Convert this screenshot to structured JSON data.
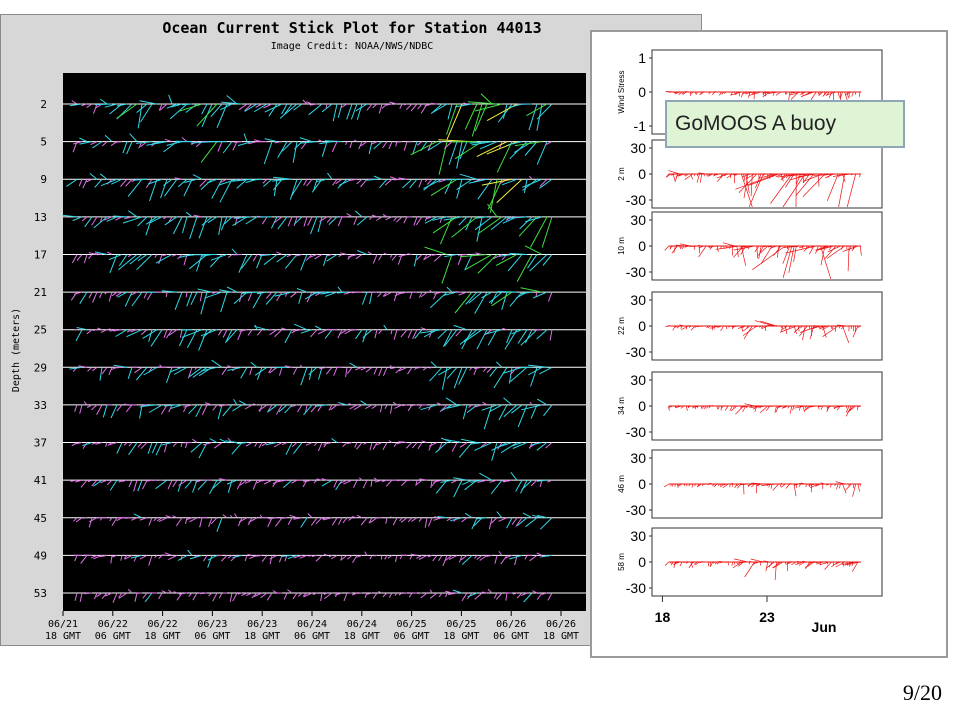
{
  "slide": {
    "page_number": "9/20"
  },
  "callout": {
    "text": "GoMOOS A buoy"
  },
  "chart_data": [
    {
      "type": "stick",
      "title": "Ocean Current Stick Plot for Station 44013",
      "subtitle": "Image Credit: NOAA/NWS/NDBC",
      "ylabel": "Depth (meters)",
      "depths": [
        "2",
        "5",
        "9",
        "13",
        "17",
        "21",
        "25",
        "29",
        "33",
        "37",
        "41",
        "45",
        "49",
        "53"
      ],
      "x_ticks": [
        {
          "date": "06/21",
          "time": "18 GMT"
        },
        {
          "date": "06/22",
          "time": "06 GMT"
        },
        {
          "date": "06/22",
          "time": "18 GMT"
        },
        {
          "date": "06/23",
          "time": "06 GMT"
        },
        {
          "date": "06/23",
          "time": "18 GMT"
        },
        {
          "date": "06/24",
          "time": "06 GMT"
        },
        {
          "date": "06/24",
          "time": "18 GMT"
        },
        {
          "date": "06/25",
          "time": "06 GMT"
        },
        {
          "date": "06/25",
          "time": "18 GMT"
        },
        {
          "date": "06/26",
          "time": "06 GMT"
        },
        {
          "date": "06/26",
          "time": "18 GMT"
        }
      ],
      "colors": {
        "background": "#000000",
        "baseline": "#ffffff",
        "weak": "#e070e8",
        "moderate": "#30d8e8",
        "strong": "#40e040",
        "strongest": "#f0f040"
      },
      "activity": [
        0.35,
        0.4,
        0.6,
        0.55,
        0.7,
        0.55,
        0.4,
        0.5,
        0.35,
        0.25,
        0.15,
        0.2,
        0.85,
        1.0,
        0.95,
        0.85,
        0.65
      ]
    },
    {
      "type": "stick",
      "panels": [
        {
          "label": "Wind Stress",
          "yticks": [
            "1",
            "0",
            "-1"
          ],
          "ylim": [
            -1,
            1
          ],
          "amplitude": 0.25
        },
        {
          "label": "2 m",
          "yticks": [
            "30",
            "0",
            "-30"
          ],
          "ylim": [
            -30,
            30
          ],
          "amplitude": 1.0
        },
        {
          "label": "10 m",
          "yticks": [
            "30",
            "0",
            "-30"
          ],
          "ylim": [
            -30,
            30
          ],
          "amplitude": 0.85
        },
        {
          "label": "22 m",
          "yticks": [
            "30",
            "0",
            "-30"
          ],
          "ylim": [
            -30,
            30
          ],
          "amplitude": 0.45
        },
        {
          "label": "34 m",
          "yticks": [
            "30",
            "0",
            "-30"
          ],
          "ylim": [
            -30,
            30
          ],
          "amplitude": 0.35
        },
        {
          "label": "46 m",
          "yticks": [
            "30",
            "0",
            "-30"
          ],
          "ylim": [
            -30,
            30
          ],
          "amplitude": 0.3
        },
        {
          "label": "58 m",
          "yticks": [
            "30",
            "0",
            "-30"
          ],
          "ylim": [
            -30,
            30
          ],
          "amplitude": 0.45
        }
      ],
      "x_ticks": [
        {
          "label": "18",
          "day": 18
        },
        {
          "label": "23",
          "day": 23
        }
      ],
      "x_unit": "Jun",
      "xlim": [
        17.5,
        28.5
      ],
      "color": "#ee1111"
    }
  ]
}
